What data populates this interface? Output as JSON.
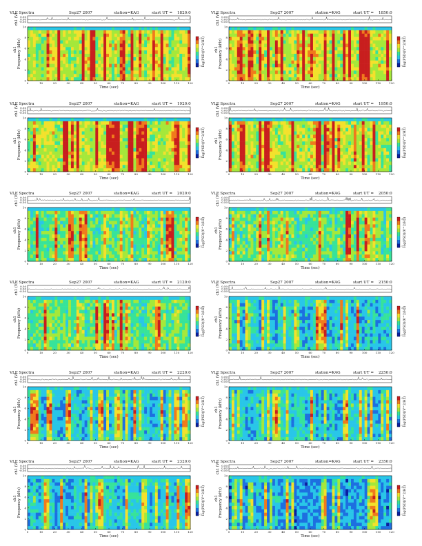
{
  "figure": {
    "header_left": "VLF Spectra",
    "date": "Sep27 2007",
    "station": "station=KAG",
    "start_label": "start UT =",
    "colors": {
      "spectrogram_scale": [
        "#0a1f9e",
        "#1d6fe0",
        "#29c6e8",
        "#37e39a",
        "#a5e83a",
        "#f3e12c",
        "#f07a1c",
        "#c81e1e"
      ],
      "waveform": "#222222"
    }
  },
  "chart_data": [
    {
      "type": "heatmap",
      "panel": 1,
      "start_ut": "1820:0",
      "title": "VLF Spectra Sep27 2007 station=KAG start UT =1820:0",
      "xlabel": "Time (sec)",
      "ylabel": "Frequency (kHz)",
      "channel_label": "ch1",
      "wave_label": "ch1 (V)",
      "colorbar_label": "log(PSD)(V^2/Hz)",
      "xlim": [
        0,
        120
      ],
      "ylim": [
        0,
        10
      ],
      "xticks": [
        "0",
        "10",
        "20",
        "30",
        "40",
        "50",
        "60",
        "70",
        "80",
        "90",
        "100",
        "110",
        "120"
      ],
      "yticks": [
        "0",
        "2",
        "4",
        "6",
        "8",
        "10"
      ],
      "wave_ticks": [
        "0.50",
        "0.00",
        "-0.50"
      ],
      "colorbar_ticks": [
        "-3",
        "-7"
      ],
      "activity": "high"
    },
    {
      "type": "heatmap",
      "panel": 2,
      "start_ut": "1850:0",
      "title": "VLF Spectra Sep27 2007 station=KAG start UT =1850:0",
      "xlabel": "Time (sec)",
      "ylabel": "Frequency (kHz)",
      "channel_label": "ch1",
      "wave_label": "ch1 (V)",
      "colorbar_label": "log(PSD)(V^2/Hz)",
      "xlim": [
        0,
        120
      ],
      "ylim": [
        0,
        10
      ],
      "xticks": [
        "0",
        "10",
        "20",
        "30",
        "40",
        "50",
        "60",
        "70",
        "80",
        "90",
        "100",
        "110",
        "120"
      ],
      "yticks": [
        "0",
        "2",
        "4",
        "6",
        "8",
        "10"
      ],
      "wave_ticks": [
        "0.50",
        "0.00",
        "-0.50"
      ],
      "colorbar_ticks": [
        "-3",
        "-7"
      ],
      "activity": "high"
    },
    {
      "type": "heatmap",
      "panel": 3,
      "start_ut": "1920:0",
      "title": "VLF Spectra Sep27 2007 station=KAG start UT =1920:0",
      "xlabel": "Time (sec)",
      "ylabel": "Frequency (kHz)",
      "channel_label": "ch1",
      "wave_label": "ch1 (V)",
      "colorbar_label": "log(PSD)(V^2/Hz)",
      "xlim": [
        0,
        120
      ],
      "ylim": [
        0,
        10
      ],
      "xticks": [
        "0",
        "10",
        "20",
        "30",
        "40",
        "50",
        "60",
        "70",
        "80",
        "90",
        "100",
        "110",
        "120"
      ],
      "yticks": [
        "0",
        "2",
        "4",
        "6",
        "8",
        "10"
      ],
      "wave_ticks": [
        "0.50",
        "0.00",
        "-0.50"
      ],
      "colorbar_ticks": [
        "-3",
        "-7"
      ],
      "activity": "high"
    },
    {
      "type": "heatmap",
      "panel": 4,
      "start_ut": "1950:0",
      "title": "VLF Spectra Sep27 2007 station=KAG start UT =1950:0",
      "xlabel": "Time (sec)",
      "ylabel": "Frequency (kHz)",
      "channel_label": "ch1",
      "wave_label": "ch1 (V)",
      "colorbar_label": "log(PSD)(V^2/Hz)",
      "xlim": [
        0,
        120
      ],
      "ylim": [
        0,
        10
      ],
      "xticks": [
        "0",
        "10",
        "20",
        "30",
        "40",
        "50",
        "60",
        "70",
        "80",
        "90",
        "100",
        "110",
        "120"
      ],
      "yticks": [
        "0",
        "2",
        "4",
        "6",
        "8",
        "10"
      ],
      "wave_ticks": [
        "0.50",
        "0.00",
        "-0.50"
      ],
      "colorbar_ticks": [
        "-3",
        "-7"
      ],
      "activity": "high"
    },
    {
      "type": "heatmap",
      "panel": 5,
      "start_ut": "2020:0",
      "title": "VLF Spectra Sep27 2007 station=KAG start UT =2020:0",
      "xlabel": "Time (sec)",
      "ylabel": "Frequency (kHz)",
      "channel_label": "ch1",
      "wave_label": "ch1 (V)",
      "colorbar_label": "log(PSD)(V^2/Hz)",
      "xlim": [
        0,
        120
      ],
      "ylim": [
        0,
        10
      ],
      "xticks": [
        "0",
        "10",
        "20",
        "30",
        "40",
        "50",
        "60",
        "70",
        "80",
        "90",
        "100",
        "110",
        "120"
      ],
      "yticks": [
        "0",
        "2",
        "4",
        "6",
        "8",
        "10"
      ],
      "wave_ticks": [
        "0.50",
        "0.00",
        "-0.50"
      ],
      "colorbar_ticks": [
        "-3",
        "-7"
      ],
      "activity": "medium"
    },
    {
      "type": "heatmap",
      "panel": 6,
      "start_ut": "2050:0",
      "title": "VLF Spectra Sep27 2007 station=KAG start UT =2050:0",
      "xlabel": "Time (sec)",
      "ylabel": "Frequency (kHz)",
      "channel_label": "ch1",
      "wave_label": "ch1 (V)",
      "colorbar_label": "log(PSD)(V^2/Hz)",
      "xlim": [
        0,
        120
      ],
      "ylim": [
        0,
        10
      ],
      "xticks": [
        "0",
        "10",
        "20",
        "30",
        "40",
        "50",
        "60",
        "70",
        "80",
        "90",
        "100",
        "110",
        "120"
      ],
      "yticks": [
        "0",
        "2",
        "4",
        "6",
        "8",
        "10"
      ],
      "wave_ticks": [
        "0.50",
        "0.00",
        "-0.50"
      ],
      "colorbar_ticks": [
        "-3",
        "-7"
      ],
      "activity": "medium"
    },
    {
      "type": "heatmap",
      "panel": 7,
      "start_ut": "2120:0",
      "title": "VLF Spectra Sep27 2007 station=KAG start UT =2120:0",
      "xlabel": "Time (sec)",
      "ylabel": "Frequency (kHz)",
      "channel_label": "ch1",
      "wave_label": "ch1 (V)",
      "colorbar_label": "log(PSD)(V^2/Hz)",
      "xlim": [
        0,
        120
      ],
      "ylim": [
        0,
        10
      ],
      "xticks": [
        "0",
        "10",
        "20",
        "30",
        "40",
        "50",
        "60",
        "70",
        "80",
        "90",
        "100",
        "110",
        "120"
      ],
      "yticks": [
        "0",
        "2",
        "4",
        "6",
        "8",
        "10"
      ],
      "wave_ticks": [
        "0.50",
        "0.00",
        "-0.50"
      ],
      "colorbar_ticks": [
        "-3",
        "-7"
      ],
      "activity": "medium"
    },
    {
      "type": "heatmap",
      "panel": 8,
      "start_ut": "2150:0",
      "title": "VLF Spectra Sep27 2007 station=KAG start UT =2150:0",
      "xlabel": "Time (sec)",
      "ylabel": "Frequency (kHz)",
      "channel_label": "ch1",
      "wave_label": "ch1 (V)",
      "colorbar_label": "log(PSD)(V^2/Hz)",
      "xlim": [
        0,
        120
      ],
      "ylim": [
        0,
        10
      ],
      "xticks": [
        "0",
        "10",
        "20",
        "30",
        "40",
        "50",
        "60",
        "70",
        "80",
        "90",
        "100",
        "110",
        "120"
      ],
      "yticks": [
        "0",
        "2",
        "4",
        "6",
        "8",
        "10"
      ],
      "wave_ticks": [
        "0.50",
        "0.00",
        "-0.50"
      ],
      "colorbar_ticks": [
        "-3",
        "-7"
      ],
      "activity": "low"
    },
    {
      "type": "heatmap",
      "panel": 9,
      "start_ut": "2220:0",
      "title": "VLF Spectra Sep27 2007 station=KAG start UT =2220:0",
      "xlabel": "Time (sec)",
      "ylabel": "Frequency (kHz)",
      "channel_label": "ch1",
      "wave_label": "ch1 (V)",
      "colorbar_label": "log(PSD)(V^2/Hz)",
      "xlim": [
        0,
        120
      ],
      "ylim": [
        0,
        10
      ],
      "xticks": [
        "0",
        "10",
        "20",
        "30",
        "40",
        "50",
        "60",
        "70",
        "80",
        "90",
        "100",
        "110",
        "120"
      ],
      "yticks": [
        "0",
        "2",
        "4",
        "6",
        "8",
        "10"
      ],
      "wave_ticks": [
        "0.50",
        "0.00",
        "-0.50"
      ],
      "colorbar_ticks": [
        "-3",
        "-7"
      ],
      "activity": "low"
    },
    {
      "type": "heatmap",
      "panel": 10,
      "start_ut": "2250:0",
      "title": "VLF Spectra Sep27 2007 station=KAG start UT =2250:0",
      "xlabel": "Time (sec)",
      "ylabel": "Frequency (kHz)",
      "channel_label": "ch1",
      "wave_label": "ch1 (V)",
      "colorbar_label": "log(PSD)(V^2/Hz)",
      "xlim": [
        0,
        120
      ],
      "ylim": [
        0,
        10
      ],
      "xticks": [
        "0",
        "10",
        "20",
        "30",
        "40",
        "50",
        "60",
        "70",
        "80",
        "90",
        "100",
        "110",
        "120"
      ],
      "yticks": [
        "0",
        "2",
        "4",
        "6",
        "8",
        "10"
      ],
      "wave_ticks": [
        "0.50",
        "0.00",
        "-0.50"
      ],
      "colorbar_ticks": [
        "-3",
        "-7"
      ],
      "activity": "low"
    },
    {
      "type": "heatmap",
      "panel": 11,
      "start_ut": "2320:0",
      "title": "VLF Spectra Sep27 2007 station=KAG start UT =2320:0",
      "xlabel": "Time (sec)",
      "ylabel": "Frequency (kHz)",
      "channel_label": "ch1",
      "wave_label": "ch1 (V)",
      "colorbar_label": "log(PSD)(V^2/Hz)",
      "xlim": [
        0,
        120
      ],
      "ylim": [
        0,
        10
      ],
      "xticks": [
        "0",
        "10",
        "20",
        "30",
        "40",
        "50",
        "60",
        "70",
        "80",
        "90",
        "100",
        "110",
        "120"
      ],
      "yticks": [
        "0",
        "2",
        "4",
        "6",
        "8",
        "10"
      ],
      "wave_ticks": [
        "0.50",
        "0.00",
        "-0.50"
      ],
      "colorbar_ticks": [
        "-3",
        "-7"
      ],
      "activity": "low"
    },
    {
      "type": "heatmap",
      "panel": 12,
      "start_ut": "2350:0",
      "title": "VLF Spectra Sep27 2007 station=KAG start UT =2350:0",
      "xlabel": "Time (sec)",
      "ylabel": "Frequency (kHz)",
      "channel_label": "ch1",
      "wave_label": "ch1 (V)",
      "colorbar_label": "log(PSD)(V^2/Hz)",
      "xlim": [
        0,
        120
      ],
      "ylim": [
        0,
        10
      ],
      "xticks": [
        "0",
        "10",
        "20",
        "30",
        "40",
        "50",
        "60",
        "70",
        "80",
        "90",
        "100",
        "110",
        "120"
      ],
      "yticks": [
        "0",
        "2",
        "4",
        "6",
        "8",
        "10"
      ],
      "wave_ticks": [
        "0.50",
        "0.00",
        "-0.50"
      ],
      "colorbar_ticks": [
        "-3",
        "-7"
      ],
      "activity": "verylow"
    }
  ]
}
